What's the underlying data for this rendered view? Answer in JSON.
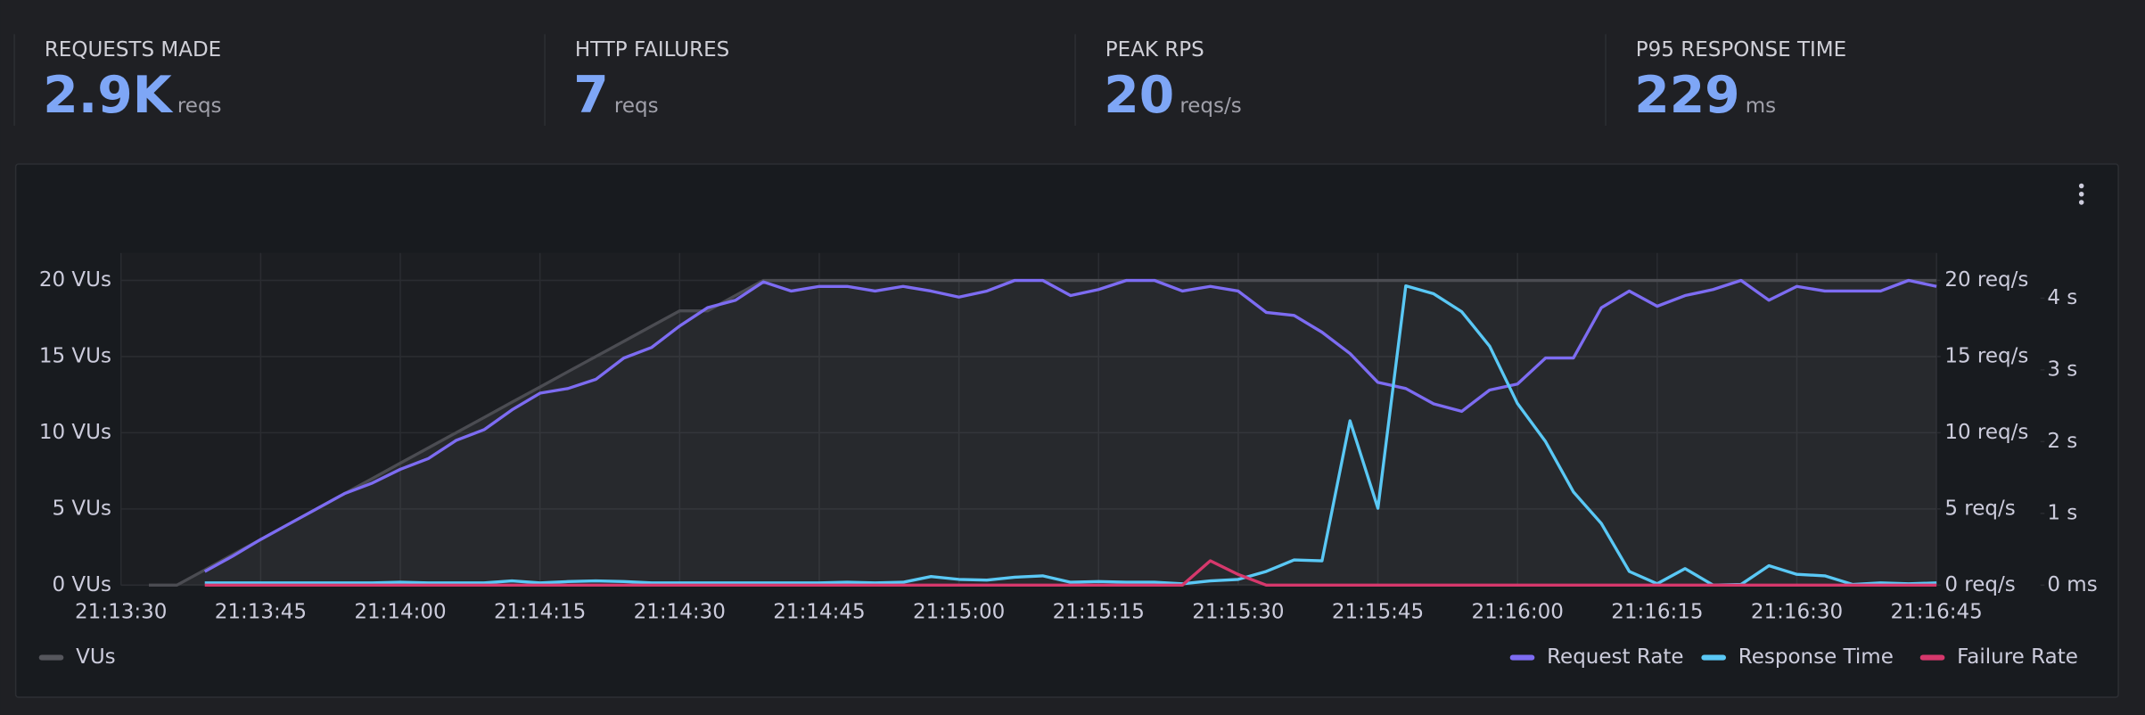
{
  "stats": [
    {
      "label": "REQUESTS MADE",
      "value": "2.9K",
      "unit": "reqs"
    },
    {
      "label": "HTTP FAILURES",
      "value": "7",
      "unit": "reqs"
    },
    {
      "label": "PEAK RPS",
      "value": "20",
      "unit": "reqs/s"
    },
    {
      "label": "P95 RESPONSE TIME",
      "value": "229",
      "unit": "ms"
    }
  ],
  "chart_data": {
    "type": "line",
    "x": [
      "21:13:33",
      "21:13:36",
      "21:13:39",
      "21:13:42",
      "21:13:45",
      "21:13:48",
      "21:13:51",
      "21:13:54",
      "21:13:57",
      "21:14:00",
      "21:14:03",
      "21:14:06",
      "21:14:09",
      "21:14:12",
      "21:14:15",
      "21:14:18",
      "21:14:21",
      "21:14:24",
      "21:14:27",
      "21:14:30",
      "21:14:33",
      "21:14:36",
      "21:14:39",
      "21:14:42",
      "21:14:45",
      "21:14:48",
      "21:14:51",
      "21:14:54",
      "21:14:57",
      "21:15:00",
      "21:15:03",
      "21:15:06",
      "21:15:09",
      "21:15:12",
      "21:15:15",
      "21:15:18",
      "21:15:21",
      "21:15:24",
      "21:15:27",
      "21:15:30",
      "21:15:33",
      "21:15:36",
      "21:15:39",
      "21:15:42",
      "21:15:45",
      "21:15:48",
      "21:15:51",
      "21:15:54",
      "21:15:57",
      "21:16:00",
      "21:16:03",
      "21:16:06",
      "21:16:09",
      "21:16:12",
      "21:16:15",
      "21:16:18",
      "21:16:21",
      "21:16:24",
      "21:16:27",
      "21:16:30",
      "21:16:33",
      "21:16:36",
      "21:16:39",
      "21:16:42",
      "21:16:45"
    ],
    "series": [
      {
        "name": "VUs",
        "color": "#4b4c52",
        "axis": "y",
        "values": [
          0,
          0,
          1,
          2,
          3,
          4,
          5,
          6,
          7,
          8,
          9,
          10,
          11,
          12,
          13,
          14,
          15,
          16,
          17,
          18,
          18,
          19,
          20,
          20,
          20,
          20,
          20,
          20,
          20,
          20,
          20,
          20,
          20,
          20,
          20,
          20,
          20,
          20,
          20,
          20,
          20,
          20,
          20,
          20,
          20,
          20,
          20,
          20,
          20,
          20,
          20,
          20,
          20,
          20,
          20,
          20,
          20,
          20,
          20,
          20,
          20,
          20,
          20,
          20,
          20
        ]
      },
      {
        "name": "Request Rate",
        "color": "#7d6cf2",
        "axis": "y2",
        "values": [
          null,
          null,
          0.9,
          1.9,
          3.0,
          4.0,
          5.0,
          6.0,
          6.7,
          7.6,
          8.3,
          9.5,
          10.2,
          11.5,
          12.6,
          12.9,
          13.5,
          14.9,
          15.6,
          17.0,
          18.2,
          18.7,
          19.9,
          19.3,
          19.6,
          19.6,
          19.3,
          19.6,
          19.3,
          18.9,
          19.3,
          20.0,
          20.0,
          19.0,
          19.4,
          20.0,
          20.0,
          19.3,
          19.6,
          19.3,
          17.9,
          17.7,
          16.6,
          15.2,
          13.3,
          12.9,
          11.9,
          11.4,
          12.8,
          13.2,
          14.9,
          14.9,
          18.2,
          19.3,
          18.3,
          19.0,
          19.4,
          20.0,
          18.7,
          19.6,
          19.3,
          19.3,
          19.3,
          20.0,
          19.6
        ]
      },
      {
        "name": "Response Time",
        "color": "#5ac8f5",
        "axis": "y3",
        "values": [
          null,
          null,
          30,
          30,
          30,
          30,
          30,
          30,
          30,
          40,
          30,
          30,
          30,
          60,
          30,
          50,
          60,
          50,
          30,
          30,
          30,
          30,
          30,
          30,
          30,
          40,
          30,
          40,
          120,
          80,
          70,
          110,
          130,
          40,
          50,
          40,
          40,
          20,
          60,
          80,
          190,
          350,
          340,
          2290,
          1070,
          4170,
          4060,
          3810,
          3330,
          2530,
          2000,
          1300,
          860,
          190,
          20,
          230,
          0,
          10,
          270,
          150,
          130,
          10,
          30,
          20,
          30
        ]
      },
      {
        "name": "Failure Rate",
        "color": "#d6386c",
        "axis": "y2",
        "values": [
          null,
          null,
          0,
          0,
          0,
          0,
          0,
          0,
          0,
          0,
          0,
          0,
          0,
          0,
          0,
          0,
          0,
          0,
          0,
          0,
          0,
          0,
          0,
          0,
          0,
          0,
          0,
          0,
          0,
          0,
          0,
          0,
          0,
          0,
          0,
          0,
          0,
          0,
          1.6,
          0.7,
          0,
          0,
          0,
          0,
          0,
          0,
          0,
          0,
          0,
          0,
          0,
          0,
          0,
          0,
          0,
          0,
          0,
          0,
          0,
          0,
          0,
          0,
          0,
          0,
          0
        ]
      }
    ],
    "xlim": [
      "21:13:30",
      "21:16:45"
    ],
    "xticks": [
      "21:13:30",
      "21:13:45",
      "21:14:00",
      "21:14:15",
      "21:14:30",
      "21:14:45",
      "21:15:00",
      "21:15:15",
      "21:15:30",
      "21:15:45",
      "21:16:00",
      "21:16:15",
      "21:16:30",
      "21:16:45"
    ],
    "ylim": [
      0,
      21.8
    ],
    "yticks": [
      {
        "value": 0,
        "label": "0 VUs"
      },
      {
        "value": 5,
        "label": "5 VUs"
      },
      {
        "value": 10,
        "label": "10 VUs"
      },
      {
        "value": 15,
        "label": "15 VUs"
      },
      {
        "value": 20,
        "label": "20 VUs"
      }
    ],
    "y2lim": [
      0,
      21.8
    ],
    "y2ticks": [
      {
        "value": 0,
        "label": "0 req/s"
      },
      {
        "value": 5,
        "label": "5 req/s"
      },
      {
        "value": 10,
        "label": "10 req/s"
      },
      {
        "value": 15,
        "label": "15 req/s"
      },
      {
        "value": 20,
        "label": "20 req/s"
      }
    ],
    "y3lim": [
      0,
      4630
    ],
    "y3ticks": [
      {
        "value": 0,
        "label": "0 ms"
      },
      {
        "value": 1000,
        "label": "1 s"
      },
      {
        "value": 2000,
        "label": "2 s"
      },
      {
        "value": 3000,
        "label": "3 s"
      },
      {
        "value": 4000,
        "label": "4 s"
      }
    ],
    "grid": true
  }
}
